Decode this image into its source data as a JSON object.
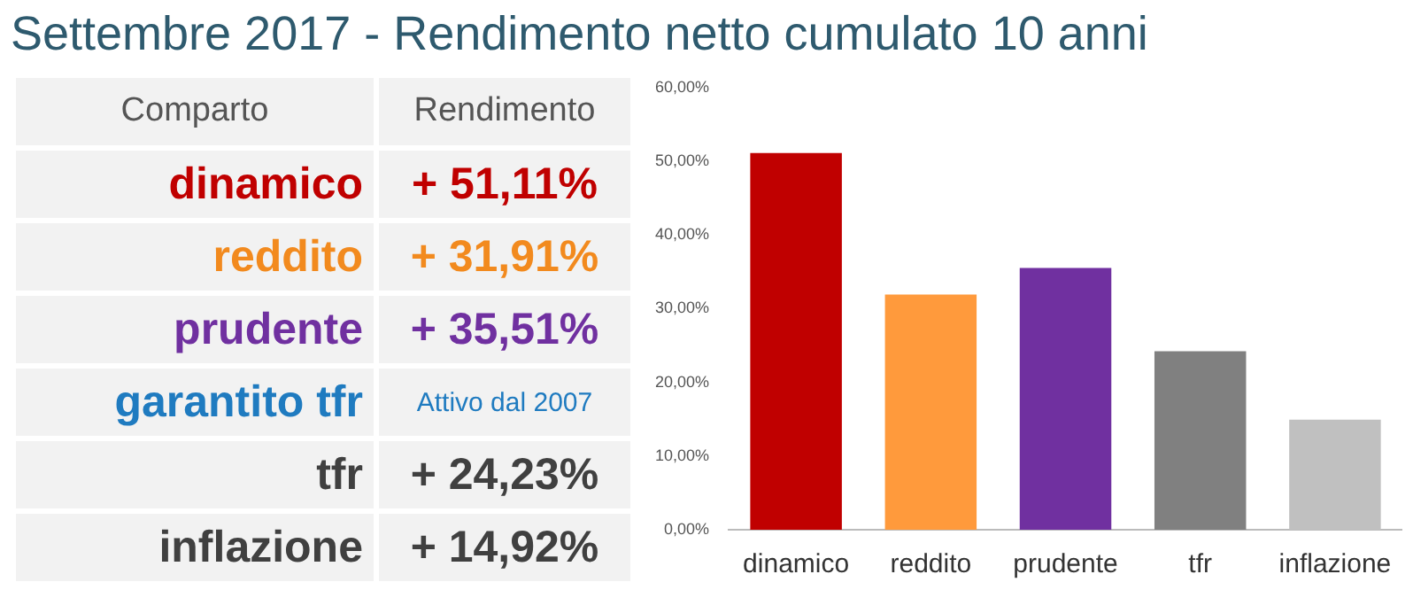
{
  "chart_data": [
    {
      "type": "other",
      "title": "Settembre 2017 - Rendimento netto cumulato 10 anni",
      "annotations": [
        "Comparto",
        "Rendimento",
        "dinamico",
        "+ 51,11%",
        "reddito",
        "+ 31,91%",
        "prudente",
        "+ 35,51%",
        "garantito tfr",
        "Attivo dal 2007",
        "tfr",
        "+ 24,23%",
        "inflazione",
        "+ 14,92%"
      ]
    },
    {
      "type": "bar",
      "categories": [
        "dinamico",
        "reddito",
        "prudente",
        "tfr",
        "inflazione"
      ],
      "values": [
        51.11,
        31.91,
        35.51,
        24.23,
        14.92
      ],
      "colors": [
        "#c00000",
        "#ff9a3c",
        "#7030a0",
        "#808080",
        "#c0c0c0"
      ],
      "ylim": [
        0,
        60
      ],
      "yticks": [
        {
          "value": 0,
          "label": "0,00%"
        },
        {
          "value": 10,
          "label": "10,00%"
        },
        {
          "value": 20,
          "label": "20,00%"
        },
        {
          "value": 30,
          "label": "30,00%"
        },
        {
          "value": 40,
          "label": "40,00%"
        },
        {
          "value": 50,
          "label": "50,00%"
        },
        {
          "value": 60,
          "label": "60,00%"
        }
      ],
      "grid": false,
      "legend": false
    }
  ]
}
